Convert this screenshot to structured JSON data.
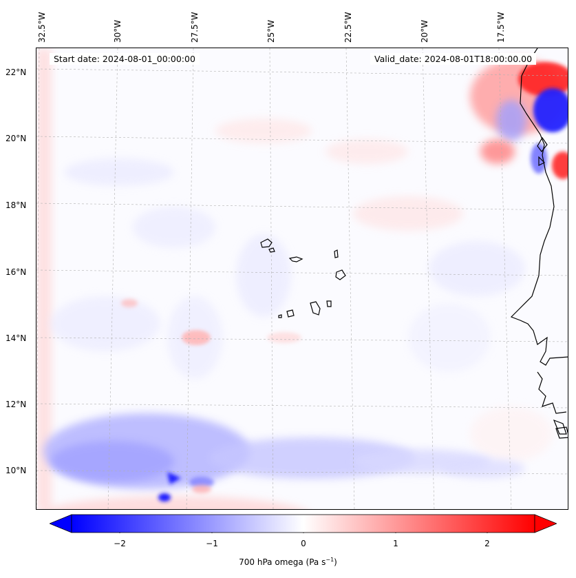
{
  "header": {
    "start_date": "Start date: 2024-08-01_00:00:00",
    "valid_date": "Valid_date: 2024-08-01T18:00:00.00"
  },
  "axes": {
    "lon_labels": [
      "32.5°W",
      "30°W",
      "27.5°W",
      "25°W",
      "22.5°W",
      "20°W",
      "17.5°W"
    ],
    "lat_labels": [
      "22°N",
      "20°N",
      "18°N",
      "16°N",
      "14°N",
      "12°N",
      "10°N"
    ]
  },
  "colorbar": {
    "variable": "700 hPa omega",
    "units_prefix": "Pa s",
    "units_exp": "−1",
    "ticks": [
      "−2",
      "−1",
      "0",
      "1",
      "2"
    ],
    "range": [
      -2.5,
      2.5
    ],
    "extend": "both",
    "colormap": "bwr",
    "min_color": "#0000ff",
    "mid_color": "#ffffff",
    "max_color": "#ff0000"
  },
  "map": {
    "coastline_color": "#000000",
    "gridline_color": "#b0b0b0",
    "gridlines": true
  }
}
